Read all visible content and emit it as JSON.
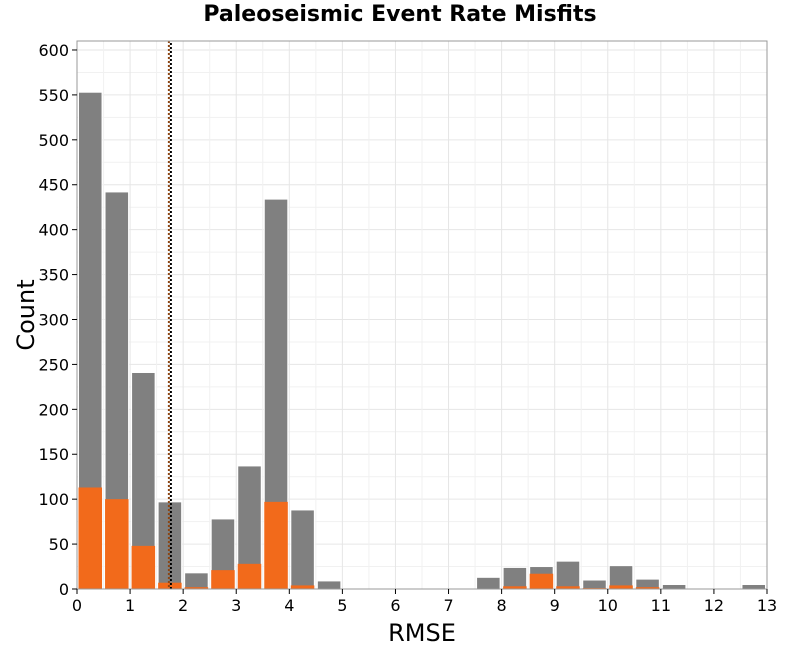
{
  "chart_data": {
    "type": "bar",
    "title": "Paleoseismic Event Rate Misfits",
    "xlabel": "RMSE",
    "ylabel": "Count",
    "xlim": [
      0,
      13
    ],
    "ylim": [
      0,
      610
    ],
    "xticks": [
      0,
      1,
      2,
      3,
      4,
      5,
      6,
      7,
      8,
      9,
      10,
      11,
      12,
      13
    ],
    "yticks": [
      0,
      50,
      100,
      150,
      200,
      250,
      300,
      350,
      400,
      450,
      500,
      550,
      600
    ],
    "bin_width": 0.5,
    "grid": true,
    "bin_starts": [
      0,
      0.5,
      1,
      1.5,
      2,
      2.5,
      3,
      3.5,
      4,
      4.5,
      5,
      5.5,
      6,
      6.5,
      7,
      7.5,
      8,
      8.5,
      9,
      9.5,
      10,
      10.5,
      11,
      11.5,
      12,
      12.5
    ],
    "series": [
      {
        "color": "#808080",
        "values": [
          553,
          442,
          241,
          97,
          18,
          78,
          137,
          434,
          88,
          9,
          0,
          0,
          0,
          0,
          0,
          13,
          24,
          25,
          31,
          10,
          26,
          11,
          5,
          0,
          0,
          5
        ]
      },
      {
        "color": "#f26a1b",
        "values": [
          113,
          100,
          48,
          7,
          2,
          21,
          28,
          97,
          4,
          0,
          0,
          0,
          0,
          0,
          0,
          0,
          3,
          17,
          3,
          1,
          4,
          2,
          0,
          0,
          0,
          0
        ]
      }
    ],
    "vline": {
      "x": 1.75,
      "color_a": "#8b4513",
      "color_b": "#000000",
      "style": "dotted"
    }
  }
}
